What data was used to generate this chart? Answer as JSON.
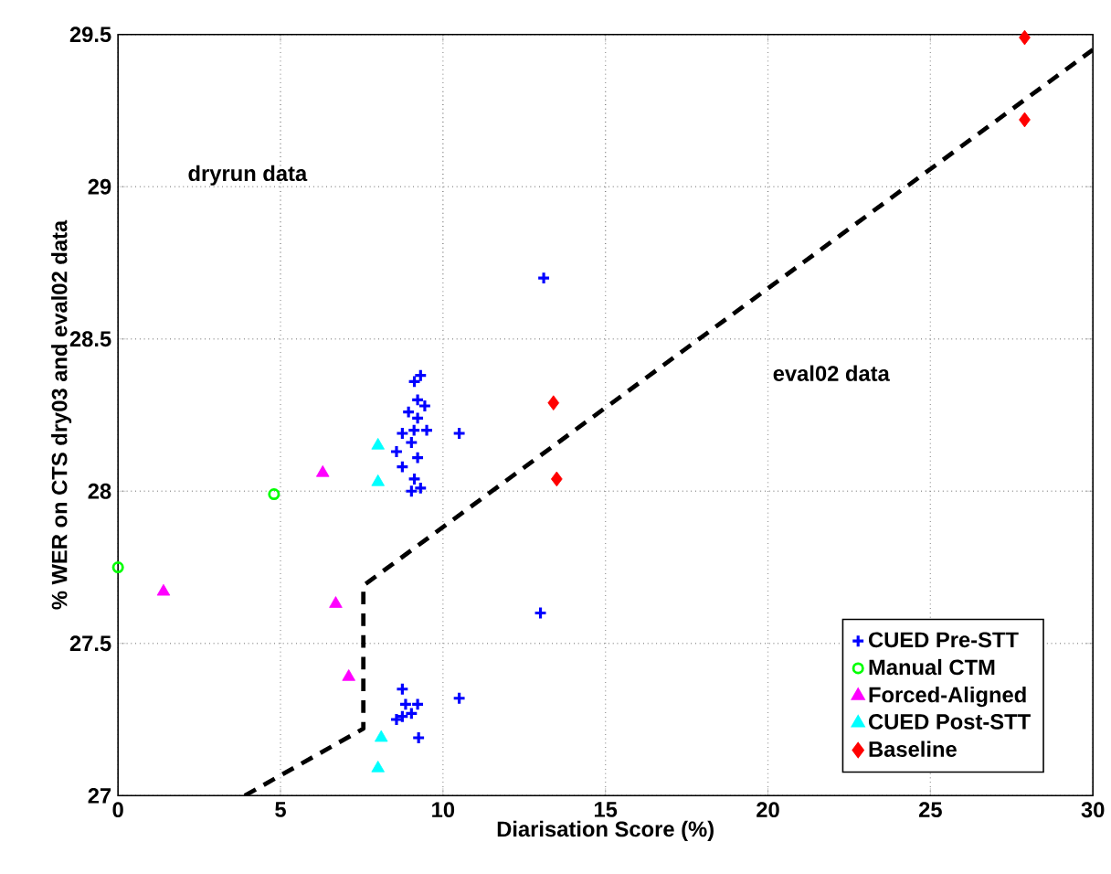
{
  "chart_data": {
    "type": "scatter",
    "xlabel": "Diarisation Score (%)",
    "ylabel": "% WER on CTS dry03 and eval02 data",
    "xlim": [
      0,
      30
    ],
    "ylim": [
      27,
      29.5
    ],
    "xticks": [
      0,
      5,
      10,
      15,
      20,
      25,
      30
    ],
    "yticks": [
      27,
      27.5,
      28,
      28.5,
      29,
      29.5
    ],
    "grid": true,
    "legend": "bottom right",
    "annotations": [
      "dryrun data",
      "eval02 data"
    ],
    "series": [
      {
        "name": "CUED Pre-STT",
        "color": "#0000ff",
        "marker": "cross",
        "x": [
          13.1,
          13.0,
          10.5,
          10.5,
          9.31,
          9.12,
          9.22,
          9.44,
          8.94,
          9.22,
          8.75,
          9.11,
          9.5,
          9.03,
          8.57,
          9.22,
          8.75,
          9.12,
          9.03,
          9.31,
          8.75,
          8.85,
          9.22,
          9.03,
          8.57,
          8.75,
          9.25
        ],
        "values": [
          28.7,
          27.6,
          28.19,
          27.32,
          28.38,
          28.36,
          28.3,
          28.28,
          28.26,
          28.24,
          28.19,
          28.2,
          28.2,
          28.16,
          28.13,
          28.11,
          28.08,
          28.04,
          28.0,
          28.01,
          27.35,
          27.3,
          27.3,
          27.27,
          27.25,
          27.26,
          27.19
        ]
      },
      {
        "name": "Manual CTM",
        "color": "#00ff00",
        "marker": "circle",
        "x": [
          0,
          4.8
        ],
        "values": [
          27.75,
          27.99
        ]
      },
      {
        "name": "Forced-Aligned",
        "color": "#ff00ff",
        "marker": "triangle",
        "x": [
          1.4,
          6.3,
          6.7,
          7.1
        ],
        "values": [
          27.67,
          28.06,
          27.63,
          27.39
        ]
      },
      {
        "name": "CUED Post-STT",
        "color": "#00ffff",
        "marker": "triangle",
        "x": [
          8.0,
          8.0,
          8.1,
          8.0
        ],
        "values": [
          28.15,
          28.03,
          27.19,
          27.09
        ]
      },
      {
        "name": "Baseline",
        "color": "#ff0000",
        "marker": "diamond",
        "x": [
          13.4,
          13.5,
          27.9,
          27.9
        ],
        "values": [
          28.29,
          28.04,
          29.49,
          29.22
        ]
      },
      {
        "type": "line",
        "color": "#000000",
        "line_style": "dashed",
        "marker": "none",
        "x": [
          3.9,
          7.55,
          7.55,
          30
        ],
        "values": [
          27.0,
          27.22,
          27.69,
          29.45
        ]
      }
    ]
  }
}
